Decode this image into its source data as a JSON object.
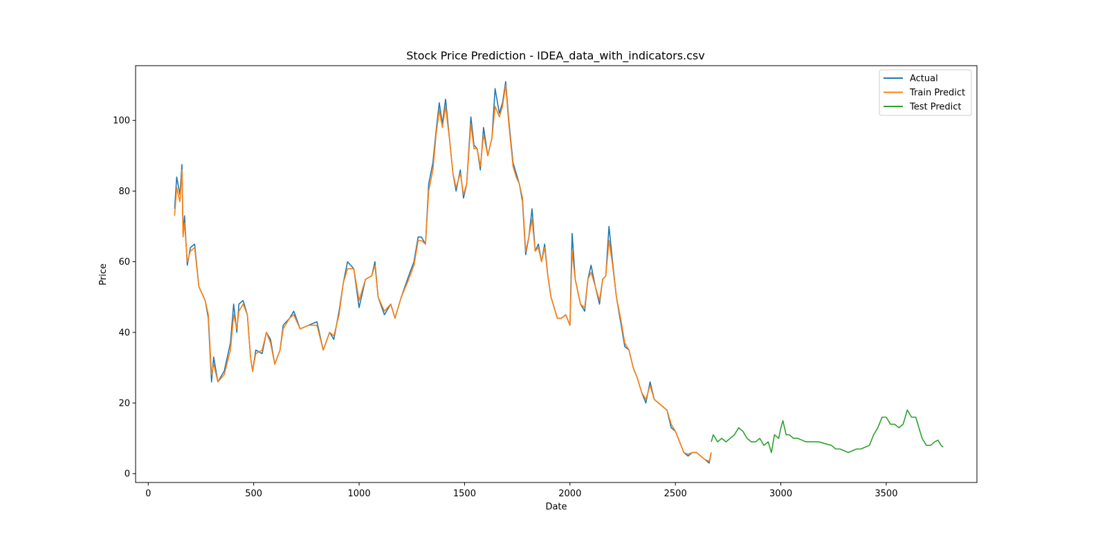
{
  "chart_data": {
    "type": "line",
    "title": "Stock Price Prediction - IDEA_data_with_indicators.csv",
    "xlabel": "Date",
    "ylabel": "Price",
    "xlim": [
      -60,
      3930
    ],
    "ylim": [
      -2.5,
      115.5
    ],
    "xticks": [
      0,
      500,
      1000,
      1500,
      2000,
      2500,
      3000,
      3500
    ],
    "yticks": [
      0,
      20,
      40,
      60,
      80,
      100
    ],
    "grid": false,
    "legend_position": "top-right",
    "series": [
      {
        "name": "Actual",
        "color": "#1f77b4",
        "points": [
          [
            125,
            75
          ],
          [
            135,
            84
          ],
          [
            150,
            79
          ],
          [
            160,
            87.5
          ],
          [
            165,
            68
          ],
          [
            172,
            73
          ],
          [
            185,
            59
          ],
          [
            200,
            64
          ],
          [
            220,
            65
          ],
          [
            240,
            53
          ],
          [
            270,
            49
          ],
          [
            285,
            44
          ],
          [
            300,
            26
          ],
          [
            310,
            33
          ],
          [
            330,
            26
          ],
          [
            360,
            29
          ],
          [
            390,
            37
          ],
          [
            405,
            48
          ],
          [
            420,
            40
          ],
          [
            430,
            48
          ],
          [
            450,
            49
          ],
          [
            470,
            45
          ],
          [
            485,
            33
          ],
          [
            495,
            29
          ],
          [
            510,
            35
          ],
          [
            540,
            34
          ],
          [
            560,
            40
          ],
          [
            580,
            38
          ],
          [
            600,
            31
          ],
          [
            625,
            35
          ],
          [
            640,
            42
          ],
          [
            670,
            44
          ],
          [
            690,
            46
          ],
          [
            720,
            41
          ],
          [
            760,
            42
          ],
          [
            800,
            43
          ],
          [
            830,
            35
          ],
          [
            860,
            40
          ],
          [
            880,
            38
          ],
          [
            905,
            46
          ],
          [
            925,
            54
          ],
          [
            945,
            60
          ],
          [
            975,
            58
          ],
          [
            1000,
            47
          ],
          [
            1030,
            55
          ],
          [
            1060,
            56
          ],
          [
            1075,
            60
          ],
          [
            1090,
            50
          ],
          [
            1120,
            45
          ],
          [
            1150,
            48
          ],
          [
            1170,
            44
          ],
          [
            1200,
            50
          ],
          [
            1235,
            56
          ],
          [
            1260,
            60
          ],
          [
            1280,
            67
          ],
          [
            1295,
            67
          ],
          [
            1315,
            65
          ],
          [
            1330,
            82
          ],
          [
            1350,
            88
          ],
          [
            1365,
            97
          ],
          [
            1380,
            105
          ],
          [
            1395,
            99
          ],
          [
            1410,
            106
          ],
          [
            1430,
            94
          ],
          [
            1445,
            85
          ],
          [
            1460,
            80
          ],
          [
            1480,
            86
          ],
          [
            1495,
            78
          ],
          [
            1510,
            82
          ],
          [
            1530,
            101
          ],
          [
            1545,
            93
          ],
          [
            1560,
            92
          ],
          [
            1575,
            86
          ],
          [
            1590,
            98
          ],
          [
            1610,
            90
          ],
          [
            1630,
            95
          ],
          [
            1645,
            109
          ],
          [
            1665,
            102
          ],
          [
            1680,
            105
          ],
          [
            1695,
            111
          ],
          [
            1710,
            100
          ],
          [
            1730,
            88
          ],
          [
            1745,
            85
          ],
          [
            1760,
            82
          ],
          [
            1775,
            77
          ],
          [
            1790,
            62
          ],
          [
            1805,
            67
          ],
          [
            1820,
            75
          ],
          [
            1835,
            63
          ],
          [
            1850,
            65
          ],
          [
            1865,
            60
          ],
          [
            1880,
            65
          ],
          [
            1895,
            56
          ],
          [
            1910,
            50
          ],
          [
            1925,
            47
          ],
          [
            1940,
            44
          ],
          [
            1960,
            44
          ],
          [
            1980,
            45
          ],
          [
            2000,
            42
          ],
          [
            2010,
            68
          ],
          [
            2025,
            55
          ],
          [
            2050,
            48
          ],
          [
            2070,
            46
          ],
          [
            2085,
            55
          ],
          [
            2100,
            59
          ],
          [
            2120,
            53
          ],
          [
            2140,
            48
          ],
          [
            2155,
            55
          ],
          [
            2170,
            56
          ],
          [
            2185,
            70
          ],
          [
            2200,
            61
          ],
          [
            2220,
            50
          ],
          [
            2240,
            43
          ],
          [
            2260,
            36
          ],
          [
            2280,
            35
          ],
          [
            2300,
            30
          ],
          [
            2320,
            27
          ],
          [
            2340,
            23
          ],
          [
            2360,
            20
          ],
          [
            2380,
            26
          ],
          [
            2400,
            21
          ],
          [
            2420,
            20
          ],
          [
            2440,
            19
          ],
          [
            2460,
            18
          ],
          [
            2480,
            13
          ],
          [
            2500,
            12
          ],
          [
            2520,
            9
          ],
          [
            2540,
            6
          ],
          [
            2560,
            5
          ],
          [
            2580,
            6
          ],
          [
            2600,
            6
          ],
          [
            2620,
            5
          ],
          [
            2640,
            4
          ],
          [
            2660,
            3
          ],
          [
            2670,
            6
          ]
        ]
      },
      {
        "name": "Train Predict",
        "color": "#ff7f0e",
        "points": [
          [
            125,
            73
          ],
          [
            135,
            81
          ],
          [
            150,
            77
          ],
          [
            160,
            86
          ],
          [
            165,
            67
          ],
          [
            172,
            71
          ],
          [
            185,
            60
          ],
          [
            200,
            63
          ],
          [
            220,
            64
          ],
          [
            240,
            53
          ],
          [
            270,
            49
          ],
          [
            285,
            45
          ],
          [
            300,
            28
          ],
          [
            310,
            31
          ],
          [
            330,
            26
          ],
          [
            360,
            28
          ],
          [
            390,
            35
          ],
          [
            405,
            45
          ],
          [
            420,
            41
          ],
          [
            430,
            46
          ],
          [
            450,
            48
          ],
          [
            470,
            45
          ],
          [
            485,
            33
          ],
          [
            495,
            29
          ],
          [
            510,
            34
          ],
          [
            540,
            35
          ],
          [
            560,
            40
          ],
          [
            580,
            37
          ],
          [
            600,
            31
          ],
          [
            625,
            35
          ],
          [
            640,
            41
          ],
          [
            670,
            44
          ],
          [
            690,
            45
          ],
          [
            720,
            41
          ],
          [
            760,
            42
          ],
          [
            800,
            42
          ],
          [
            830,
            35
          ],
          [
            860,
            40
          ],
          [
            880,
            39
          ],
          [
            905,
            45
          ],
          [
            925,
            54
          ],
          [
            945,
            58
          ],
          [
            975,
            58
          ],
          [
            1000,
            49
          ],
          [
            1030,
            55
          ],
          [
            1060,
            56
          ],
          [
            1075,
            59
          ],
          [
            1090,
            50
          ],
          [
            1120,
            46
          ],
          [
            1150,
            48
          ],
          [
            1170,
            44
          ],
          [
            1200,
            50
          ],
          [
            1235,
            55
          ],
          [
            1260,
            59
          ],
          [
            1280,
            66
          ],
          [
            1295,
            66
          ],
          [
            1315,
            65
          ],
          [
            1330,
            80
          ],
          [
            1350,
            86
          ],
          [
            1365,
            96
          ],
          [
            1380,
            103
          ],
          [
            1395,
            98
          ],
          [
            1410,
            104
          ],
          [
            1430,
            94
          ],
          [
            1445,
            85
          ],
          [
            1460,
            81
          ],
          [
            1480,
            85
          ],
          [
            1495,
            79
          ],
          [
            1510,
            82
          ],
          [
            1530,
            99
          ],
          [
            1545,
            92
          ],
          [
            1560,
            92
          ],
          [
            1575,
            87
          ],
          [
            1590,
            96
          ],
          [
            1610,
            90
          ],
          [
            1630,
            95
          ],
          [
            1645,
            104
          ],
          [
            1665,
            101
          ],
          [
            1680,
            104
          ],
          [
            1695,
            110
          ],
          [
            1710,
            99
          ],
          [
            1730,
            87
          ],
          [
            1745,
            84
          ],
          [
            1760,
            82
          ],
          [
            1775,
            78
          ],
          [
            1790,
            63
          ],
          [
            1805,
            67
          ],
          [
            1820,
            72
          ],
          [
            1835,
            63
          ],
          [
            1850,
            64
          ],
          [
            1865,
            60
          ],
          [
            1880,
            64
          ],
          [
            1895,
            56
          ],
          [
            1910,
            50
          ],
          [
            1925,
            47
          ],
          [
            1940,
            44
          ],
          [
            1960,
            44
          ],
          [
            1980,
            45
          ],
          [
            2000,
            42
          ],
          [
            2010,
            63
          ],
          [
            2025,
            55
          ],
          [
            2050,
            48
          ],
          [
            2070,
            47
          ],
          [
            2085,
            55
          ],
          [
            2100,
            57
          ],
          [
            2120,
            53
          ],
          [
            2140,
            49
          ],
          [
            2155,
            55
          ],
          [
            2170,
            56
          ],
          [
            2185,
            66
          ],
          [
            2200,
            60
          ],
          [
            2220,
            50
          ],
          [
            2240,
            44
          ],
          [
            2260,
            37
          ],
          [
            2280,
            35
          ],
          [
            2300,
            30
          ],
          [
            2320,
            27
          ],
          [
            2340,
            23
          ],
          [
            2360,
            21
          ],
          [
            2380,
            25
          ],
          [
            2400,
            21
          ],
          [
            2420,
            20
          ],
          [
            2440,
            19
          ],
          [
            2460,
            18
          ],
          [
            2480,
            14
          ],
          [
            2500,
            12
          ],
          [
            2520,
            9
          ],
          [
            2540,
            6
          ],
          [
            2560,
            5.5
          ],
          [
            2580,
            6
          ],
          [
            2600,
            6
          ],
          [
            2620,
            5
          ],
          [
            2640,
            4
          ],
          [
            2660,
            3.5
          ],
          [
            2670,
            6
          ]
        ]
      },
      {
        "name": "Test Predict",
        "color": "#2ca02c",
        "points": [
          [
            2670,
            9
          ],
          [
            2680,
            11
          ],
          [
            2700,
            9
          ],
          [
            2720,
            10
          ],
          [
            2740,
            9
          ],
          [
            2760,
            10
          ],
          [
            2780,
            11
          ],
          [
            2800,
            13
          ],
          [
            2820,
            12
          ],
          [
            2840,
            10
          ],
          [
            2860,
            9
          ],
          [
            2880,
            9
          ],
          [
            2900,
            10
          ],
          [
            2920,
            8
          ],
          [
            2940,
            9
          ],
          [
            2955,
            6
          ],
          [
            2970,
            11
          ],
          [
            2990,
            10
          ],
          [
            3000,
            13
          ],
          [
            3010,
            15
          ],
          [
            3025,
            11
          ],
          [
            3040,
            11
          ],
          [
            3060,
            10
          ],
          [
            3080,
            10
          ],
          [
            3100,
            9.5
          ],
          [
            3120,
            9
          ],
          [
            3150,
            9
          ],
          [
            3180,
            9
          ],
          [
            3210,
            8.5
          ],
          [
            3240,
            8
          ],
          [
            3260,
            7
          ],
          [
            3280,
            7
          ],
          [
            3300,
            6.5
          ],
          [
            3320,
            6
          ],
          [
            3340,
            6.5
          ],
          [
            3360,
            7
          ],
          [
            3380,
            7
          ],
          [
            3400,
            7.5
          ],
          [
            3420,
            8
          ],
          [
            3440,
            11
          ],
          [
            3460,
            13
          ],
          [
            3480,
            16
          ],
          [
            3500,
            16
          ],
          [
            3520,
            14
          ],
          [
            3540,
            14
          ],
          [
            3560,
            13
          ],
          [
            3580,
            14
          ],
          [
            3600,
            18
          ],
          [
            3620,
            16
          ],
          [
            3640,
            16
          ],
          [
            3660,
            12
          ],
          [
            3670,
            10
          ],
          [
            3690,
            8
          ],
          [
            3710,
            8
          ],
          [
            3730,
            9
          ],
          [
            3745,
            9.5
          ],
          [
            3760,
            8
          ],
          [
            3770,
            7.5
          ]
        ]
      }
    ]
  }
}
